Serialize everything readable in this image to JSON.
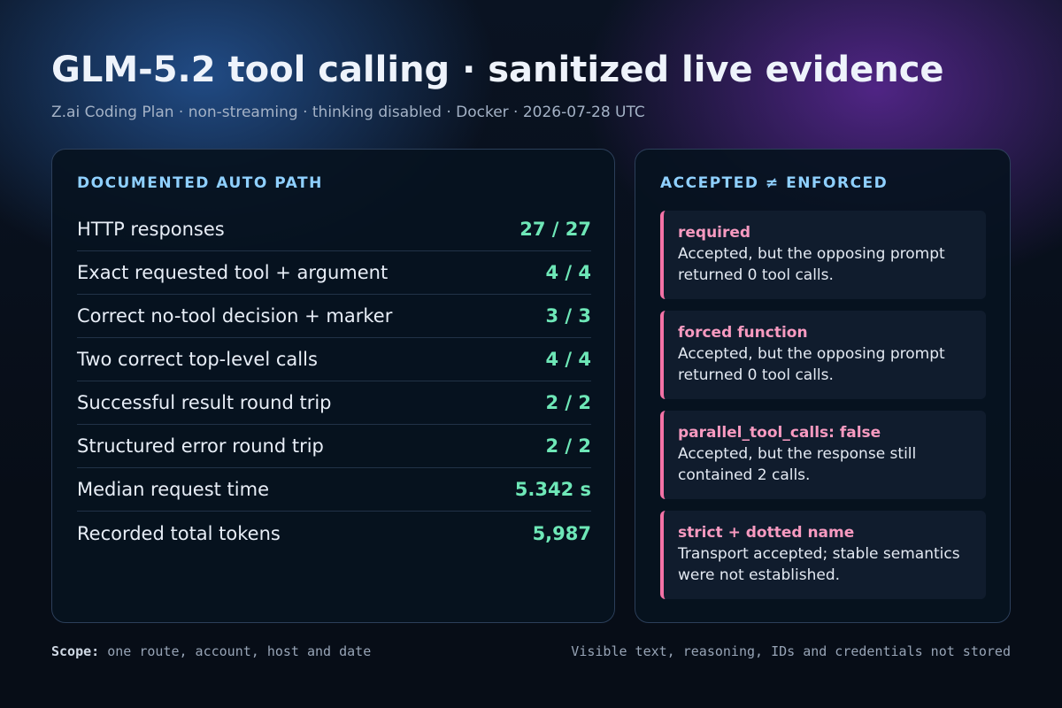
{
  "header": {
    "title": "GLM-5.2 tool calling · sanitized live evidence",
    "subtitle": "Z.ai Coding Plan · non-streaming · thinking disabled · Docker · 2026-07-28 UTC"
  },
  "left_card": {
    "heading": "DOCUMENTED AUTO PATH",
    "metrics": [
      {
        "label": "HTTP responses",
        "value": "27 / 27"
      },
      {
        "label": "Exact requested tool + argument",
        "value": "4 / 4"
      },
      {
        "label": "Correct no-tool decision + marker",
        "value": "3 / 3"
      },
      {
        "label": "Two correct top-level calls",
        "value": "4 / 4"
      },
      {
        "label": "Successful result round trip",
        "value": "2 / 2"
      },
      {
        "label": "Structured error round trip",
        "value": "2 / 2"
      },
      {
        "label": "Median request time",
        "value": "5.342 s"
      },
      {
        "label": "Recorded total tokens",
        "value": "5,987"
      }
    ]
  },
  "right_card": {
    "heading": "ACCEPTED ≠ ENFORCED",
    "notes": [
      {
        "title": "required",
        "body": "Accepted, but the opposing prompt returned 0 tool calls."
      },
      {
        "title": "forced function",
        "body": "Accepted, but the opposing prompt returned 0 tool calls."
      },
      {
        "title": "parallel_tool_calls: false",
        "body": "Accepted, but the response still contained 2 calls."
      },
      {
        "title": "strict + dotted name",
        "body": "Transport accepted; stable semantics were not established."
      }
    ]
  },
  "footer": {
    "scope_label": "Scope:",
    "scope_text": " one route, account, host and date",
    "right_text": "Visible text, reasoning, IDs and credentials not stored"
  },
  "colors": {
    "accent_heading": "#8fd0ff",
    "metric_value": "#6ee7b7",
    "note_accent": "#f472a6"
  }
}
